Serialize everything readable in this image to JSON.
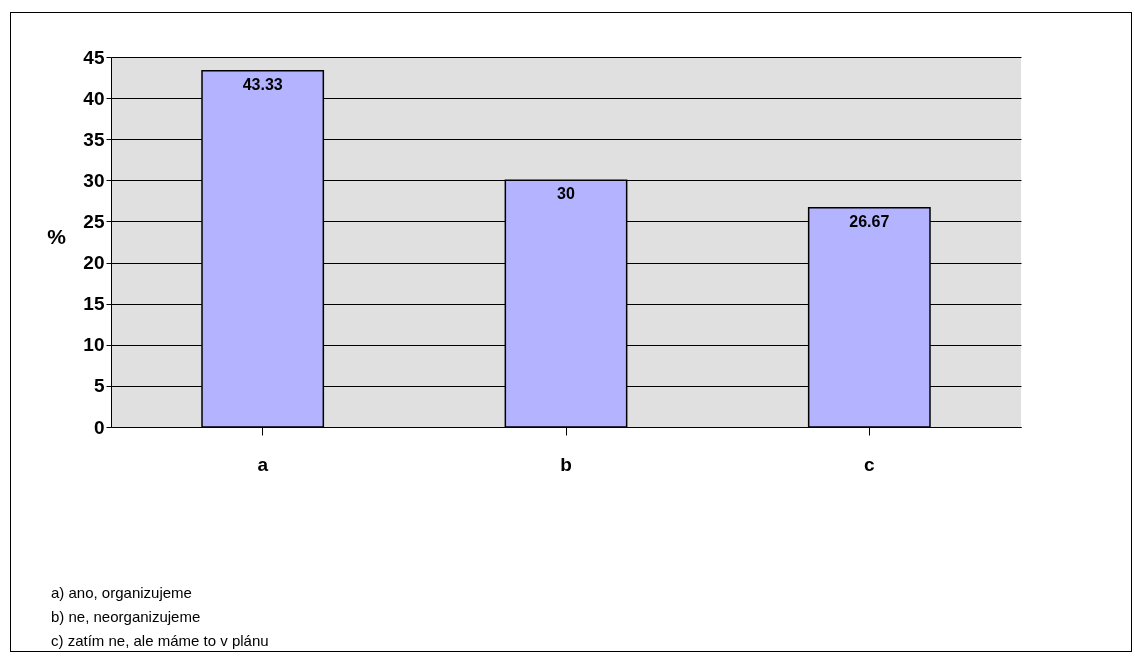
{
  "chart_data": {
    "type": "bar",
    "ylabel": "%",
    "categories": [
      "a",
      "b",
      "c"
    ],
    "values": [
      43.33,
      30,
      26.67
    ],
    "color": "#b3b3ff",
    "ylim": [
      0,
      45
    ],
    "yticks": [
      0,
      5,
      10,
      15,
      20,
      25,
      30,
      35,
      40,
      45
    ],
    "grid": "y",
    "data_labels": true,
    "annotations": [
      "a) ano, organizujeme",
      "b) ne, neorganizujeme",
      "c) zatím ne, ale máme to v plánu"
    ]
  }
}
